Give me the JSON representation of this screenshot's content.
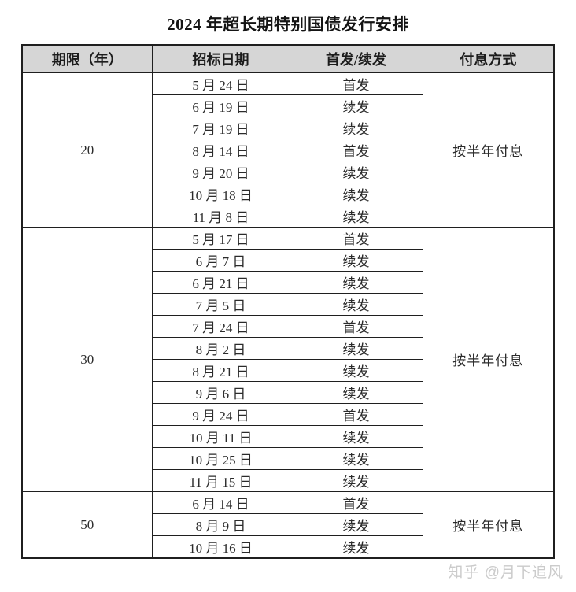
{
  "title": "2024 年超长期特别国债发行安排",
  "watermark": "知乎 @月下追风",
  "colors": {
    "header_bg": "#d6d6d6",
    "border": "#1f1f1f",
    "text": "#2b2b2b",
    "watermark": "#cbcbcb"
  },
  "table": {
    "headers": [
      "期限（年）",
      "招标日期",
      "首发/续发",
      "付息方式"
    ],
    "sections": [
      {
        "term": "20",
        "payment": "按半年付息",
        "rows": [
          {
            "date": "5 月 24 日",
            "type": "首发"
          },
          {
            "date": "6 月 19 日",
            "type": "续发"
          },
          {
            "date": "7 月 19 日",
            "type": "续发"
          },
          {
            "date": "8 月 14 日",
            "type": "首发"
          },
          {
            "date": "9 月 20 日",
            "type": "续发"
          },
          {
            "date": "10 月 18 日",
            "type": "续发"
          },
          {
            "date": "11 月 8 日",
            "type": "续发"
          }
        ]
      },
      {
        "term": "30",
        "payment": "按半年付息",
        "rows": [
          {
            "date": "5 月 17 日",
            "type": "首发"
          },
          {
            "date": "6 月 7 日",
            "type": "续发"
          },
          {
            "date": "6 月 21 日",
            "type": "续发"
          },
          {
            "date": "7 月 5 日",
            "type": "续发"
          },
          {
            "date": "7 月 24 日",
            "type": "首发"
          },
          {
            "date": "8 月 2 日",
            "type": "续发"
          },
          {
            "date": "8 月 21 日",
            "type": "续发"
          },
          {
            "date": "9 月 6 日",
            "type": "续发"
          },
          {
            "date": "9 月 24 日",
            "type": "首发"
          },
          {
            "date": "10 月 11 日",
            "type": "续发"
          },
          {
            "date": "10 月 25 日",
            "type": "续发"
          },
          {
            "date": "11 月 15 日",
            "type": "续发"
          }
        ]
      },
      {
        "term": "50",
        "payment": "按半年付息",
        "rows": [
          {
            "date": "6 月 14 日",
            "type": "首发"
          },
          {
            "date": "8 月 9 日",
            "type": "续发"
          },
          {
            "date": "10 月 16 日",
            "type": "续发"
          }
        ]
      }
    ]
  }
}
